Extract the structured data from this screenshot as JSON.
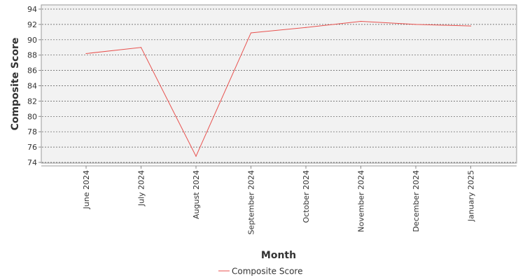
{
  "chart_data": {
    "type": "line",
    "title": "",
    "xlabel": "Month",
    "ylabel": "Composite Score",
    "categories": [
      "June 2024",
      "July 2024",
      "August 2024",
      "September 2024",
      "October 2024",
      "November 2024",
      "December 2024",
      "January 2025"
    ],
    "series": [
      {
        "name": "Composite Score",
        "color": "#e8524f",
        "values": [
          88.2,
          89.0,
          74.8,
          90.9,
          91.6,
          92.4,
          92.0,
          91.8
        ]
      }
    ],
    "ylim": [
      74,
      94
    ],
    "yticks": [
      74,
      76,
      78,
      80,
      82,
      84,
      86,
      88,
      90,
      92,
      94
    ],
    "grid": true,
    "legend": "bottom-center",
    "plot_background": "#f2f2f2",
    "grid_color": "#555555"
  }
}
